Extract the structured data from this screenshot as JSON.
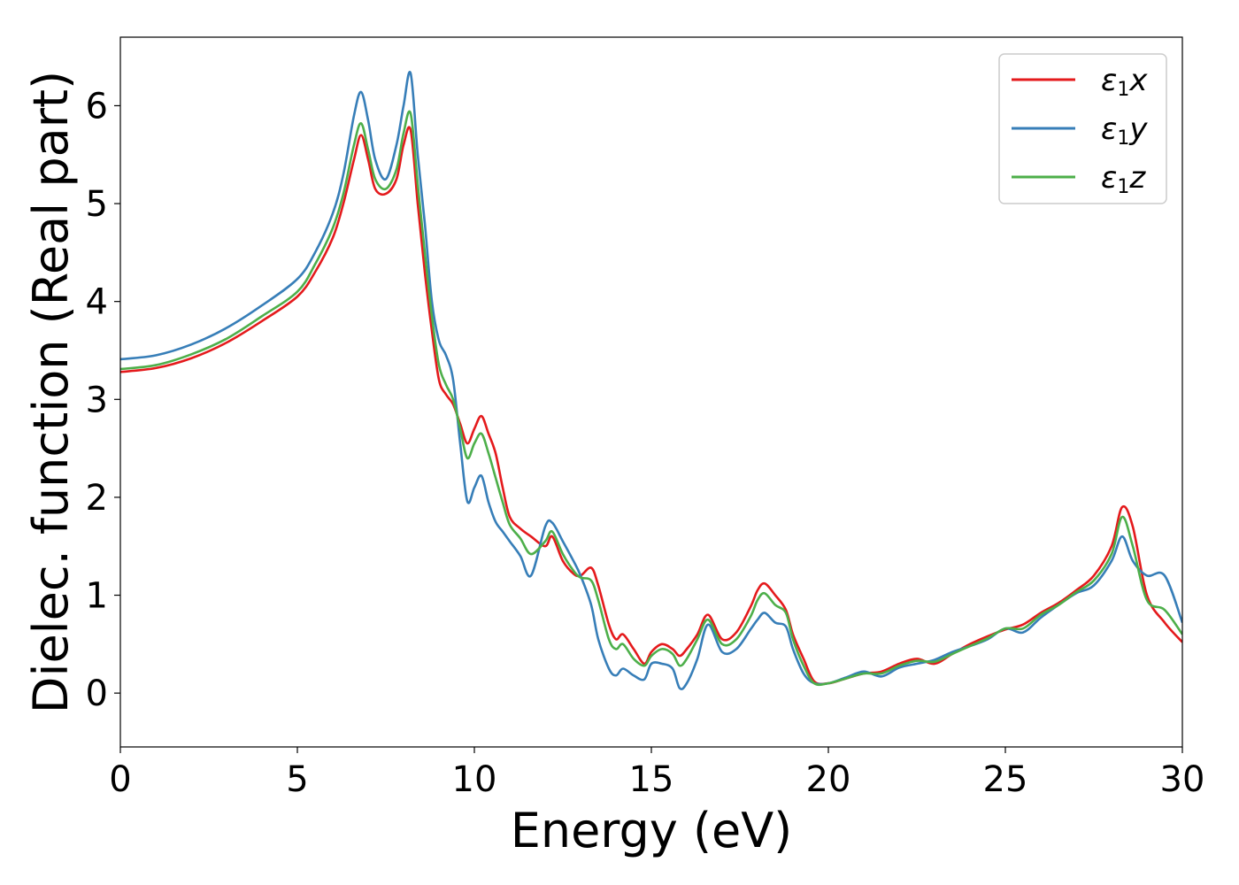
{
  "chart_data": {
    "type": "line",
    "title": "",
    "xlabel": "Energy (eV)",
    "ylabel": "Dielec. function (Real part)",
    "xlim": [
      0,
      30
    ],
    "ylim": [
      -0.55,
      6.7
    ],
    "xticks": [
      0,
      5,
      10,
      15,
      20,
      25,
      30
    ],
    "yticks": [
      0,
      1,
      2,
      3,
      4,
      5,
      6
    ],
    "grid": false,
    "legend_position": "top-right",
    "series": [
      {
        "name": "ε1x",
        "legend_base": "ε",
        "legend_sub": "1",
        "legend_suffix": "x",
        "color": "#e41a1c",
        "x": [
          0,
          1,
          2,
          3,
          4,
          5,
          5.5,
          6,
          6.3,
          6.6,
          6.8,
          7.0,
          7.2,
          7.5,
          7.8,
          8.0,
          8.2,
          8.4,
          8.6,
          8.8,
          9.0,
          9.2,
          9.4,
          9.6,
          9.8,
          10.0,
          10.2,
          10.4,
          10.6,
          10.8,
          11.0,
          11.3,
          11.6,
          12.0,
          12.2,
          12.5,
          12.8,
          13.0,
          13.3,
          13.5,
          13.8,
          14.0,
          14.2,
          14.5,
          14.8,
          15.0,
          15.3,
          15.6,
          15.8,
          16.0,
          16.3,
          16.6,
          17.0,
          17.4,
          17.8,
          18.0,
          18.2,
          18.5,
          18.8,
          19.0,
          19.3,
          19.6,
          20.0,
          20.5,
          21.0,
          21.5,
          22.0,
          22.5,
          23.0,
          23.5,
          24.0,
          24.5,
          25.0,
          25.5,
          26.0,
          26.5,
          27.0,
          27.5,
          28.0,
          28.3,
          28.6,
          29.0,
          29.5,
          30.0
        ],
        "y": [
          3.28,
          3.32,
          3.42,
          3.58,
          3.8,
          4.05,
          4.3,
          4.65,
          5.0,
          5.45,
          5.7,
          5.45,
          5.15,
          5.1,
          5.25,
          5.6,
          5.75,
          5.0,
          4.3,
          3.7,
          3.2,
          3.05,
          2.95,
          2.75,
          2.55,
          2.7,
          2.83,
          2.65,
          2.45,
          2.1,
          1.8,
          1.68,
          1.6,
          1.5,
          1.6,
          1.35,
          1.22,
          1.2,
          1.28,
          1.1,
          0.7,
          0.55,
          0.6,
          0.45,
          0.3,
          0.42,
          0.5,
          0.45,
          0.38,
          0.45,
          0.6,
          0.8,
          0.55,
          0.62,
          0.88,
          1.05,
          1.12,
          1.0,
          0.85,
          0.6,
          0.35,
          0.12,
          0.1,
          0.15,
          0.2,
          0.22,
          0.3,
          0.35,
          0.3,
          0.4,
          0.5,
          0.58,
          0.65,
          0.7,
          0.82,
          0.92,
          1.05,
          1.2,
          1.5,
          1.9,
          1.7,
          1.0,
          0.72,
          0.52
        ]
      },
      {
        "name": "ε1y",
        "legend_base": "ε",
        "legend_sub": "1",
        "legend_suffix": "y",
        "color": "#377eb8",
        "x": [
          0,
          1,
          2,
          3,
          4,
          5,
          5.5,
          6,
          6.3,
          6.6,
          6.8,
          7.0,
          7.2,
          7.5,
          7.8,
          8.0,
          8.2,
          8.4,
          8.6,
          8.8,
          9.0,
          9.2,
          9.4,
          9.6,
          9.8,
          10.0,
          10.2,
          10.4,
          10.6,
          10.8,
          11.0,
          11.3,
          11.6,
          12.0,
          12.2,
          12.5,
          12.8,
          13.0,
          13.3,
          13.5,
          13.8,
          14.0,
          14.2,
          14.5,
          14.8,
          15.0,
          15.3,
          15.6,
          15.8,
          16.0,
          16.3,
          16.6,
          17.0,
          17.4,
          17.8,
          18.0,
          18.2,
          18.5,
          18.8,
          19.0,
          19.3,
          19.6,
          20.0,
          20.5,
          21.0,
          21.5,
          22.0,
          22.5,
          23.0,
          23.5,
          24.0,
          24.5,
          25.0,
          25.5,
          26.0,
          26.5,
          27.0,
          27.5,
          28.0,
          28.3,
          28.6,
          29.0,
          29.5,
          30.0
        ],
        "y": [
          3.41,
          3.45,
          3.56,
          3.73,
          3.96,
          4.23,
          4.5,
          4.9,
          5.3,
          5.9,
          6.14,
          5.85,
          5.45,
          5.25,
          5.6,
          6.0,
          6.33,
          5.5,
          4.8,
          4.0,
          3.6,
          3.45,
          3.2,
          2.55,
          1.96,
          2.1,
          2.22,
          1.95,
          1.75,
          1.65,
          1.55,
          1.4,
          1.2,
          1.7,
          1.74,
          1.55,
          1.35,
          1.2,
          0.9,
          0.55,
          0.25,
          0.18,
          0.25,
          0.18,
          0.14,
          0.3,
          0.3,
          0.25,
          0.05,
          0.1,
          0.35,
          0.7,
          0.42,
          0.45,
          0.65,
          0.75,
          0.82,
          0.72,
          0.68,
          0.45,
          0.2,
          0.1,
          0.1,
          0.16,
          0.22,
          0.17,
          0.26,
          0.3,
          0.34,
          0.42,
          0.48,
          0.55,
          0.66,
          0.62,
          0.77,
          0.9,
          1.02,
          1.1,
          1.35,
          1.6,
          1.35,
          1.2,
          1.2,
          0.72
        ]
      },
      {
        "name": "ε1z",
        "legend_base": "ε",
        "legend_sub": "1",
        "legend_suffix": "z",
        "color": "#4daf4a",
        "x": [
          0,
          1,
          2,
          3,
          4,
          5,
          5.5,
          6,
          6.3,
          6.6,
          6.8,
          7.0,
          7.2,
          7.5,
          7.8,
          8.0,
          8.2,
          8.4,
          8.6,
          8.8,
          9.0,
          9.2,
          9.4,
          9.6,
          9.8,
          10.0,
          10.2,
          10.4,
          10.6,
          10.8,
          11.0,
          11.3,
          11.6,
          12.0,
          12.2,
          12.5,
          12.8,
          13.0,
          13.3,
          13.5,
          13.8,
          14.0,
          14.2,
          14.5,
          14.8,
          15.0,
          15.3,
          15.6,
          15.8,
          16.0,
          16.3,
          16.6,
          17.0,
          17.4,
          17.8,
          18.0,
          18.2,
          18.5,
          18.8,
          19.0,
          19.3,
          19.6,
          20.0,
          20.5,
          21.0,
          21.5,
          22.0,
          22.5,
          23.0,
          23.5,
          24.0,
          24.5,
          25.0,
          25.5,
          26.0,
          26.5,
          27.0,
          27.5,
          28.0,
          28.3,
          28.6,
          29.0,
          29.5,
          30.0
        ],
        "y": [
          3.31,
          3.35,
          3.46,
          3.62,
          3.85,
          4.1,
          4.38,
          4.75,
          5.1,
          5.6,
          5.82,
          5.55,
          5.25,
          5.15,
          5.35,
          5.72,
          5.92,
          5.2,
          4.5,
          3.85,
          3.35,
          3.15,
          3.0,
          2.7,
          2.4,
          2.55,
          2.65,
          2.45,
          2.2,
          1.95,
          1.72,
          1.58,
          1.42,
          1.55,
          1.65,
          1.42,
          1.25,
          1.18,
          1.15,
          0.95,
          0.55,
          0.45,
          0.5,
          0.35,
          0.28,
          0.38,
          0.45,
          0.4,
          0.28,
          0.35,
          0.55,
          0.75,
          0.5,
          0.55,
          0.78,
          0.95,
          1.02,
          0.9,
          0.82,
          0.55,
          0.28,
          0.1,
          0.1,
          0.15,
          0.2,
          0.2,
          0.28,
          0.33,
          0.32,
          0.4,
          0.48,
          0.56,
          0.66,
          0.66,
          0.8,
          0.9,
          1.03,
          1.15,
          1.42,
          1.8,
          1.5,
          0.95,
          0.85,
          0.6
        ]
      }
    ]
  }
}
